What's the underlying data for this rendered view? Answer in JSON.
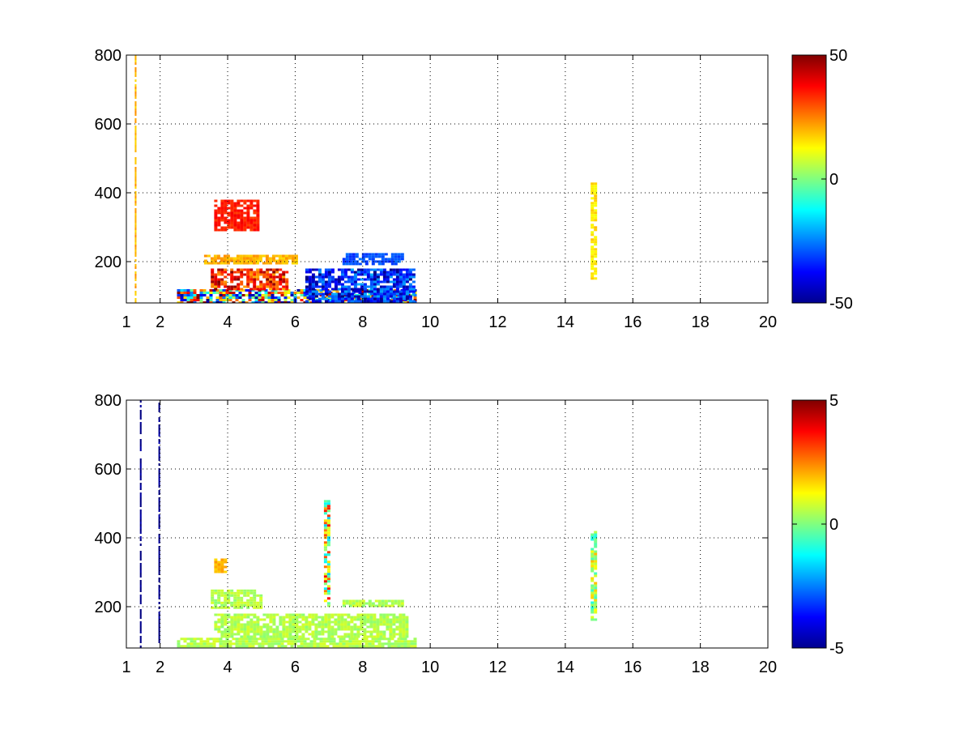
{
  "chart_data": [
    {
      "type": "heatmap",
      "title": "",
      "xlabel": "",
      "ylabel": "",
      "xlim": [
        1,
        20
      ],
      "ylim": [
        80,
        800
      ],
      "xticks": [
        1,
        2,
        4,
        6,
        8,
        10,
        12,
        14,
        16,
        18,
        20
      ],
      "xtick_labels": [
        "1",
        "2",
        "4",
        "6",
        "8",
        "10",
        "12",
        "14",
        "16",
        "18",
        "20"
      ],
      "yticks": [
        200,
        400,
        600,
        800
      ],
      "ytick_labels": [
        "200",
        "400",
        "600",
        "800"
      ],
      "grid": true,
      "colormap": "jet",
      "colorbar": {
        "range": [
          -50,
          50
        ],
        "ticks": [
          -50,
          0,
          50
        ],
        "tick_labels": [
          "-50",
          "0",
          "50"
        ]
      },
      "features": [
        {
          "x": [
            2.5,
            9.6
          ],
          "y": [
            80,
            120
          ],
          "value_range": [
            -50,
            50
          ],
          "note": "strong band"
        },
        {
          "x": [
            3.5,
            5.8
          ],
          "y": [
            120,
            180
          ],
          "value_range": [
            20,
            50
          ]
        },
        {
          "x": [
            6.3,
            9.5
          ],
          "y": [
            80,
            180
          ],
          "value_range": [
            -50,
            -20
          ]
        },
        {
          "x": [
            3.3,
            6.0
          ],
          "y": [
            195,
            220
          ],
          "value": 20
        },
        {
          "x": [
            7.4,
            9.2
          ],
          "y": [
            195,
            225
          ],
          "value": -30
        },
        {
          "x": [
            3.6,
            4.9
          ],
          "y": [
            290,
            380
          ],
          "value": 35,
          "note": "diagonal streak"
        },
        {
          "x": [
            14.75,
            14.85
          ],
          "y": [
            150,
            430
          ],
          "value": 15,
          "note": "vertical line"
        },
        {
          "x": [
            1.25,
            1.3
          ],
          "y": [
            80,
            800
          ],
          "value": 20,
          "note": "vertical line"
        }
      ]
    },
    {
      "type": "heatmap",
      "title": "",
      "xlabel": "",
      "ylabel": "",
      "xlim": [
        1,
        20
      ],
      "ylim": [
        80,
        800
      ],
      "xticks": [
        1,
        2,
        4,
        6,
        8,
        10,
        12,
        14,
        16,
        18,
        20
      ],
      "xtick_labels": [
        "1",
        "2",
        "4",
        "6",
        "8",
        "10",
        "12",
        "14",
        "16",
        "18",
        "20"
      ],
      "yticks": [
        200,
        400,
        600,
        800
      ],
      "ytick_labels": [
        "200",
        "400",
        "600",
        "800"
      ],
      "grid": true,
      "colormap": "jet",
      "colorbar": {
        "range": [
          -5,
          5
        ],
        "ticks": [
          -5,
          0,
          5
        ],
        "tick_labels": [
          "-5",
          "0",
          "5"
        ]
      },
      "features": [
        {
          "x": [
            2.5,
            9.6
          ],
          "y": [
            80,
            110
          ],
          "value": 0.5,
          "note": "band"
        },
        {
          "x": [
            3.6,
            9.3
          ],
          "y": [
            110,
            180
          ],
          "value": 0.5
        },
        {
          "x": [
            3.5,
            5.0
          ],
          "y": [
            200,
            250
          ],
          "value": 0.5
        },
        {
          "x": [
            7.4,
            9.2
          ],
          "y": [
            200,
            220
          ],
          "value": 0.5
        },
        {
          "x": [
            3.6,
            3.9
          ],
          "y": [
            300,
            340
          ],
          "value": 2
        },
        {
          "x": [
            6.85,
            6.95
          ],
          "y": [
            200,
            510
          ],
          "value_range": [
            -2,
            4
          ],
          "note": "vertical line"
        },
        {
          "x": [
            14.75,
            14.85
          ],
          "y": [
            160,
            420
          ],
          "value_range": [
            -1,
            2
          ],
          "note": "vertical line"
        },
        {
          "x": [
            1.4,
            1.45
          ],
          "y": [
            80,
            800
          ],
          "value": -5,
          "note": "vertical line"
        },
        {
          "x": [
            1.95,
            2.0
          ],
          "y": [
            80,
            800
          ],
          "value": -5,
          "note": "vertical line"
        }
      ]
    }
  ]
}
